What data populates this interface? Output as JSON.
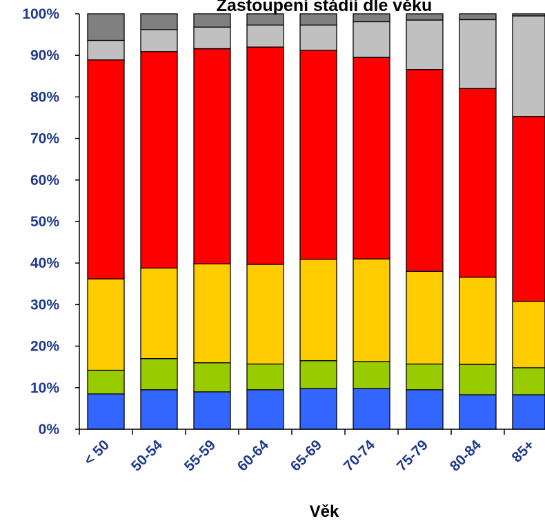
{
  "chart_data": {
    "type": "bar",
    "stacked": true,
    "normalized": true,
    "title": "Zastoupení stádií dle věku",
    "xlabel": "Věk",
    "ylabel": "",
    "ylim": [
      0,
      100
    ],
    "yticks": [
      "0%",
      "10%",
      "20%",
      "30%",
      "40%",
      "50%",
      "60%",
      "70%",
      "80%",
      "90%",
      "100%"
    ],
    "grid": false,
    "legend": "none",
    "categories": [
      "< 50",
      "50-54",
      "55-59",
      "60-64",
      "65-69",
      "70-74",
      "75-79",
      "80-84",
      "85+"
    ],
    "series": [
      {
        "color": "#3366ff",
        "values": [
          8.5,
          9.5,
          9.0,
          9.5,
          9.8,
          9.8,
          9.5,
          8.3,
          8.3
        ]
      },
      {
        "color": "#99cc00",
        "values": [
          5.7,
          7.5,
          7.0,
          6.2,
          6.7,
          6.5,
          6.2,
          7.3,
          6.5
        ]
      },
      {
        "color": "#ffcc00",
        "values": [
          22.0,
          21.8,
          23.8,
          24.0,
          24.4,
          24.7,
          22.3,
          21.0,
          16.0
        ]
      },
      {
        "color": "#ff0000",
        "values": [
          52.7,
          52.1,
          51.8,
          52.3,
          50.3,
          48.5,
          48.6,
          45.4,
          44.5
        ]
      },
      {
        "color": "#c0c0c0",
        "values": [
          4.7,
          5.3,
          5.2,
          5.3,
          6.1,
          8.6,
          11.9,
          16.6,
          24.2
        ]
      },
      {
        "color": "#808080",
        "values": [
          6.4,
          3.8,
          3.2,
          2.7,
          2.7,
          1.9,
          1.5,
          1.4,
          0.5
        ]
      }
    ]
  }
}
